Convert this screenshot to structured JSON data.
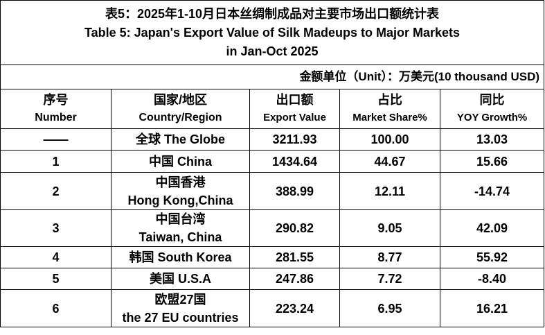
{
  "title": [
    "表5：2025年1-10月日本丝绸制成品对主要市场出口额统计表",
    "Table 5: Japan's Export Value of Silk Madeups to Major Markets",
    "in Jan-Oct 2025"
  ],
  "unit": "金额单位（Unit）：万美元(10 thousand USD)",
  "table": {
    "header": [
      [
        "序号",
        "Number"
      ],
      [
        "国家/地区",
        "Country/Region"
      ],
      [
        "出口额",
        "Export Value"
      ],
      [
        "占比",
        "Market Share%"
      ],
      [
        "同比",
        "YOY Growth%"
      ]
    ],
    "rows": [
      [
        [
          "——"
        ],
        [
          "全球 The Globe"
        ],
        [
          "3211.93"
        ],
        [
          "100.00"
        ],
        [
          "13.03"
        ]
      ],
      [
        [
          "1"
        ],
        [
          "中国 China"
        ],
        [
          "1434.64"
        ],
        [
          "44.67"
        ],
        [
          "15.66"
        ]
      ],
      [
        [
          "2"
        ],
        [
          "中国香港",
          "Hong Kong,China"
        ],
        [
          "388.99"
        ],
        [
          "12.11"
        ],
        [
          "-14.74"
        ]
      ],
      [
        [
          "3"
        ],
        [
          "中国台湾",
          "Taiwan, China"
        ],
        [
          "290.82"
        ],
        [
          "9.05"
        ],
        [
          "42.09"
        ]
      ],
      [
        [
          "4"
        ],
        [
          "韩国 South Korea"
        ],
        [
          "281.55"
        ],
        [
          "8.77"
        ],
        [
          "55.92"
        ]
      ],
      [
        [
          "5"
        ],
        [
          "美国 U.S.A"
        ],
        [
          "247.86"
        ],
        [
          "7.72"
        ],
        [
          "-8.40"
        ]
      ],
      [
        [
          "6"
        ],
        [
          "欧盟27国",
          "the 27 EU countries"
        ],
        [
          "223.24"
        ],
        [
          "6.95"
        ],
        [
          "16.21"
        ]
      ]
    ]
  }
}
